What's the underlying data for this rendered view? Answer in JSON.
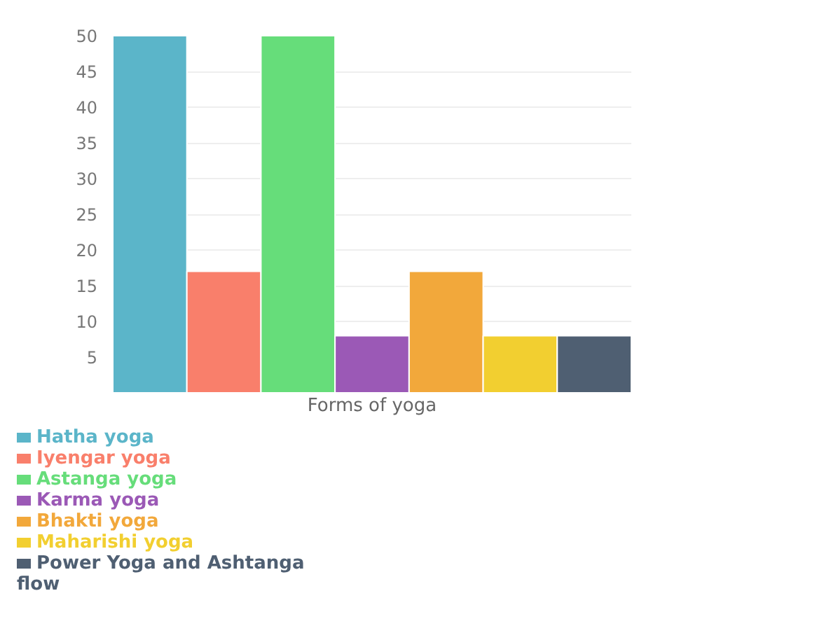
{
  "chart_data": {
    "type": "bar",
    "xlabel": "Forms of yoga",
    "categories": [
      null
    ],
    "series": [
      {
        "name": "Hatha yoga",
        "color": "#5bb5c9",
        "values": [
          50
        ]
      },
      {
        "name": "Iyengar yoga",
        "color": "#f97f6b",
        "values": [
          17
        ]
      },
      {
        "name": "Astanga yoga",
        "color": "#66dd7a",
        "values": [
          50
        ]
      },
      {
        "name": "Karma yoga",
        "color": "#9b59b6",
        "values": [
          8
        ]
      },
      {
        "name": "Bhakti yoga",
        "color": "#f2a83b",
        "values": [
          17
        ]
      },
      {
        "name": "Maharishi yoga",
        "color": "#f2cf30",
        "values": [
          8
        ]
      },
      {
        "name": "Power Yoga and Ashtanga flow",
        "color": "#4f5f72",
        "values": [
          8
        ]
      }
    ],
    "ylim": [
      0,
      50
    ],
    "yticks": [
      5,
      10,
      15,
      20,
      25,
      30,
      35,
      40,
      45,
      50
    ],
    "grid": "y",
    "legend": "bottom"
  }
}
